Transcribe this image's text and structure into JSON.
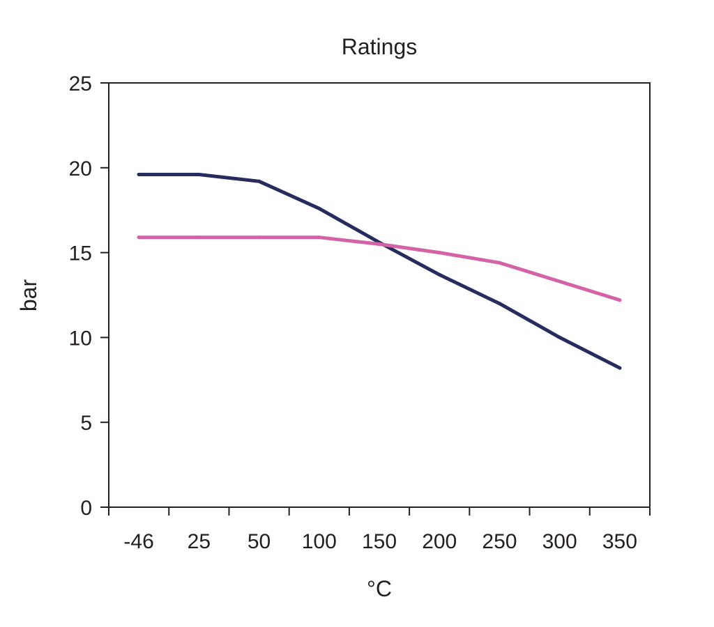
{
  "chart_data": {
    "type": "line",
    "title": "Ratings",
    "xlabel": "°C",
    "ylabel": "bar",
    "categories": [
      "-46",
      "25",
      "50",
      "100",
      "150",
      "200",
      "250",
      "300",
      "350"
    ],
    "ylim": [
      0,
      25
    ],
    "yticks": [
      0,
      5,
      10,
      15,
      20,
      25
    ],
    "grid": false,
    "legend": "none",
    "series": [
      {
        "color": "#262c5e",
        "values": [
          19.6,
          19.6,
          19.2,
          17.6,
          15.6,
          13.7,
          12.0,
          10.0,
          8.2
        ]
      },
      {
        "color": "#d462a6",
        "values": [
          15.9,
          15.9,
          15.9,
          15.9,
          15.5,
          15.0,
          14.4,
          13.3,
          12.2
        ]
      }
    ]
  }
}
